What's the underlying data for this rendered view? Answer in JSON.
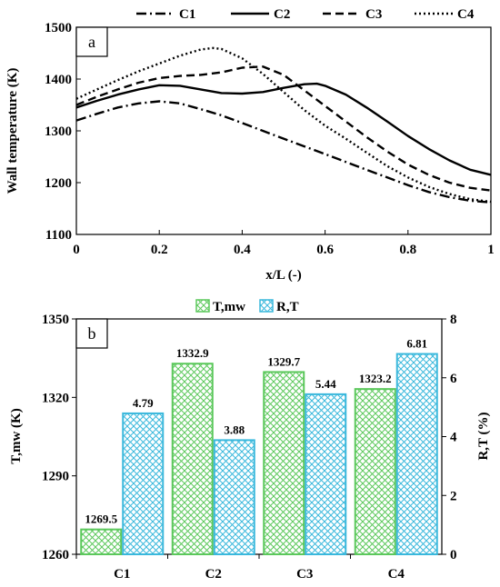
{
  "chart_data": [
    {
      "type": "line",
      "panel_label": "a",
      "xlabel": "x/L (-)",
      "ylabel": "Wall temperature (K)",
      "xlim": [
        0,
        1
      ],
      "ylim": [
        1100,
        1500
      ],
      "xticks": [
        "0",
        "0.2",
        "0.4",
        "0.6",
        "0.8",
        "1"
      ],
      "yticks": [
        "1100",
        "1200",
        "1300",
        "1400",
        "1500"
      ],
      "legend_position": "top",
      "grid": false,
      "series": [
        {
          "name": "C1",
          "style": "dash-dot",
          "x": [
            0,
            0.05,
            0.1,
            0.15,
            0.2,
            0.25,
            0.3,
            0.35,
            0.4,
            0.45,
            0.5,
            0.55,
            0.6,
            0.65,
            0.7,
            0.75,
            0.8,
            0.85,
            0.9,
            0.95,
            1.0
          ],
          "y": [
            1320,
            1333,
            1345,
            1353,
            1357,
            1353,
            1342,
            1330,
            1315,
            1300,
            1285,
            1270,
            1255,
            1240,
            1225,
            1210,
            1195,
            1182,
            1172,
            1165,
            1162
          ]
        },
        {
          "name": "C2",
          "style": "solid",
          "x": [
            0,
            0.05,
            0.1,
            0.15,
            0.2,
            0.25,
            0.3,
            0.35,
            0.4,
            0.45,
            0.5,
            0.55,
            0.58,
            0.6,
            0.65,
            0.7,
            0.75,
            0.8,
            0.85,
            0.9,
            0.95,
            1.0
          ],
          "y": [
            1345,
            1358,
            1370,
            1380,
            1388,
            1387,
            1380,
            1373,
            1372,
            1375,
            1383,
            1390,
            1391,
            1387,
            1370,
            1345,
            1318,
            1290,
            1265,
            1243,
            1225,
            1215
          ]
        },
        {
          "name": "C3",
          "style": "dashed",
          "x": [
            0,
            0.05,
            0.1,
            0.15,
            0.2,
            0.25,
            0.3,
            0.35,
            0.4,
            0.45,
            0.5,
            0.55,
            0.6,
            0.65,
            0.7,
            0.75,
            0.8,
            0.85,
            0.9,
            0.95,
            1.0
          ],
          "y": [
            1350,
            1366,
            1380,
            1393,
            1402,
            1406,
            1408,
            1413,
            1422,
            1424,
            1408,
            1378,
            1348,
            1318,
            1288,
            1260,
            1235,
            1215,
            1200,
            1190,
            1185
          ]
        },
        {
          "name": "C4",
          "style": "dotted",
          "x": [
            0,
            0.05,
            0.1,
            0.15,
            0.2,
            0.25,
            0.3,
            0.33,
            0.35,
            0.4,
            0.45,
            0.5,
            0.55,
            0.6,
            0.65,
            0.7,
            0.75,
            0.8,
            0.85,
            0.9,
            0.95,
            1.0
          ],
          "y": [
            1362,
            1380,
            1398,
            1415,
            1430,
            1445,
            1457,
            1460,
            1458,
            1440,
            1410,
            1375,
            1340,
            1310,
            1285,
            1258,
            1232,
            1210,
            1192,
            1178,
            1168,
            1163
          ]
        }
      ]
    },
    {
      "type": "bar",
      "panel_label": "b",
      "categories": [
        "C1",
        "C2",
        "C3",
        "C4"
      ],
      "ylabel": "T,mw (K)",
      "y2label": "R,T (%)",
      "ylim": [
        1260,
        1350
      ],
      "y2lim": [
        0,
        8
      ],
      "yticks": [
        "1260",
        "1290",
        "1320",
        "1350"
      ],
      "y2ticks": [
        "0",
        "2",
        "4",
        "6",
        "8"
      ],
      "legend_position": "top",
      "series": [
        {
          "name": "T,mw",
          "axis": "left",
          "color": "#5cc85c",
          "values": [
            1269.5,
            1332.9,
            1329.7,
            1323.2
          ],
          "labels": [
            "1269.5",
            "1332.9",
            "1329.7",
            "1323.2"
          ]
        },
        {
          "name": "R,T",
          "axis": "right",
          "color": "#3ab8dc",
          "values": [
            4.79,
            3.88,
            5.44,
            6.81
          ],
          "labels": [
            "4.79",
            "3.88",
            "5.44",
            "6.81"
          ]
        }
      ]
    }
  ]
}
